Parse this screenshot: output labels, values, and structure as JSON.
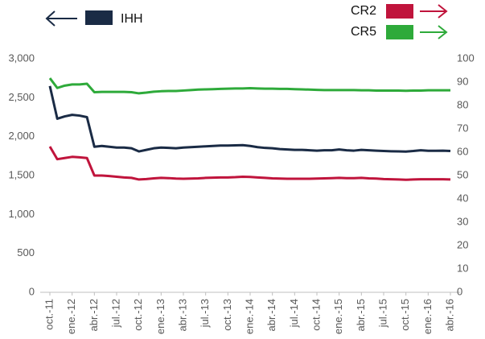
{
  "chart_data": {
    "type": "line",
    "categories": [
      "oct.-11",
      null,
      null,
      "ene.-12",
      null,
      null,
      "abr.-12",
      null,
      null,
      "jul.-12",
      null,
      null,
      "oct.-12",
      null,
      null,
      "ene.-13",
      null,
      null,
      "abr.-13",
      null,
      null,
      "jul.-13",
      null,
      null,
      "oct.-13",
      null,
      null,
      "ene.-14",
      null,
      null,
      "abr.-14",
      null,
      null,
      "jul.-14",
      null,
      null,
      "oct.-14",
      null,
      null,
      "ene.-15",
      null,
      null,
      "abr.-15",
      null,
      null,
      "jul.-15",
      null,
      null,
      "oct.-15",
      null,
      null,
      "ene.-16",
      null,
      null,
      "abr.-16"
    ],
    "series": [
      {
        "name": "IHH",
        "color": "#1a2b45",
        "axis": "y",
        "values": [
          2650,
          2230,
          2260,
          2280,
          2270,
          2250,
          1870,
          1880,
          1870,
          1860,
          1860,
          1850,
          1810,
          1830,
          1850,
          1860,
          1855,
          1850,
          1860,
          1865,
          1870,
          1875,
          1880,
          1885,
          1885,
          1888,
          1890,
          1880,
          1865,
          1855,
          1850,
          1840,
          1835,
          1830,
          1830,
          1825,
          1820,
          1825,
          1825,
          1835,
          1825,
          1820,
          1830,
          1825,
          1820,
          1815,
          1812,
          1810,
          1808,
          1815,
          1825,
          1818,
          1818,
          1820,
          1815
        ]
      },
      {
        "name": "CR2",
        "color": "#c0143c",
        "axis": "y2",
        "values": [
          62.4,
          57,
          57.5,
          58,
          57.8,
          57.5,
          50,
          50,
          49.8,
          49.5,
          49.2,
          49,
          48.3,
          48.5,
          48.8,
          49,
          48.9,
          48.7,
          48.6,
          48.7,
          48.8,
          49,
          49.1,
          49.2,
          49.2,
          49.3,
          49.5,
          49.4,
          49.2,
          49,
          48.8,
          48.7,
          48.6,
          48.6,
          48.6,
          48.6,
          48.7,
          48.8,
          48.9,
          49,
          48.9,
          48.9,
          49,
          48.8,
          48.7,
          48.5,
          48.4,
          48.3,
          48.2,
          48.3,
          48.4,
          48.4,
          48.4,
          48.4,
          48.3
        ]
      },
      {
        "name": "CR5",
        "color": "#2eaa3a",
        "axis": "y2",
        "values": [
          91.7,
          87.5,
          88.5,
          89,
          89,
          89.3,
          85.7,
          85.8,
          85.8,
          85.8,
          85.8,
          85.7,
          85.2,
          85.5,
          85.9,
          86.1,
          86.2,
          86.2,
          86.4,
          86.6,
          86.8,
          86.9,
          87.0,
          87.1,
          87.2,
          87.3,
          87.3,
          87.4,
          87.3,
          87.2,
          87.2,
          87.1,
          87.1,
          87.0,
          86.9,
          86.8,
          86.7,
          86.6,
          86.6,
          86.6,
          86.6,
          86.6,
          86.5,
          86.5,
          86.4,
          86.4,
          86.4,
          86.4,
          86.3,
          86.4,
          86.4,
          86.5,
          86.5,
          86.5,
          86.5
        ]
      }
    ],
    "ylim": [
      0,
      3000
    ],
    "yticks": [
      0,
      500,
      {
        "value": 1000,
        "label": "1,000"
      },
      {
        "value": 1500,
        "label": "1,500"
      },
      {
        "value": 2000,
        "label": "2,000"
      },
      {
        "value": 2500,
        "label": "2,500"
      },
      {
        "value": 3000,
        "label": "3,000"
      }
    ],
    "y2lim": [
      0,
      100
    ],
    "y2ticks": [
      0,
      10,
      20,
      30,
      40,
      50,
      60,
      70,
      80,
      90,
      100
    ],
    "grid": false
  }
}
